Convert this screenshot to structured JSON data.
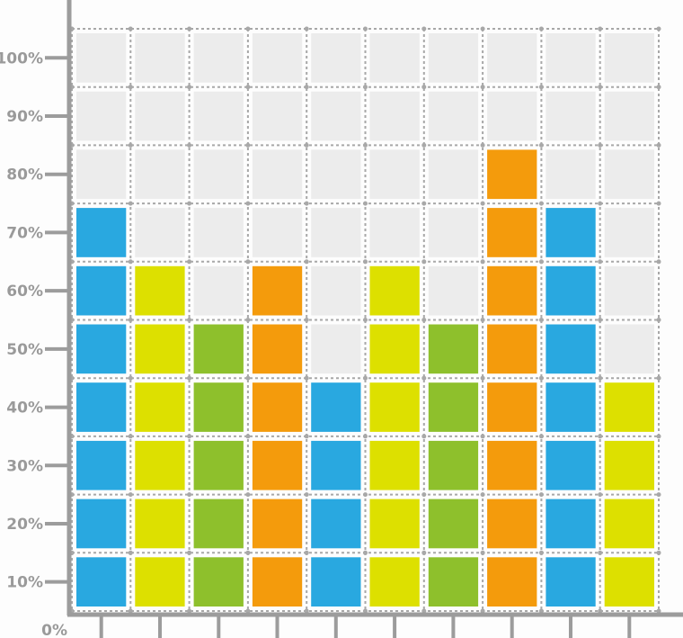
{
  "chart_data": {
    "type": "bar",
    "categories": [
      "",
      "",
      "",
      "",
      "",
      "",
      "",
      "",
      "",
      ""
    ],
    "values": [
      70,
      60,
      50,
      60,
      40,
      60,
      50,
      80,
      70,
      40
    ],
    "ylim": [
      0,
      100
    ],
    "yticks": [
      "0%",
      "10%",
      "20%",
      "30%",
      "40%",
      "50%",
      "60%",
      "70%",
      "80%",
      "90%",
      "100%"
    ],
    "grid": true,
    "empty_cell_color": "#ececec",
    "axis_color": "#9c9c9c",
    "bar_colors": [
      "#29a8e0",
      "#dde000",
      "#8ec02c",
      "#f49b0c",
      "#29a8e0",
      "#dde000",
      "#8ec02c",
      "#f49b0c",
      "#29a8e0",
      "#dde000"
    ]
  }
}
